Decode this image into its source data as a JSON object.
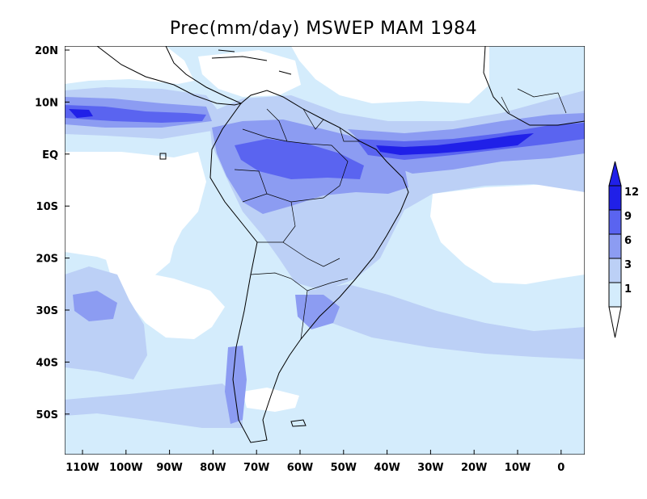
{
  "title": "Prec(mm/day) MSWEP MAM 1984",
  "map": {
    "lat_labels": [
      "20N",
      "10N",
      "EQ",
      "10S",
      "20S",
      "30S",
      "40S",
      "50S"
    ],
    "lon_labels": [
      "110W",
      "100W",
      "90W",
      "80W",
      "70W",
      "60W",
      "50W",
      "40W",
      "30W",
      "20W",
      "10W",
      "0"
    ]
  },
  "legend": {
    "labels": [
      "12",
      "9",
      "6",
      "3",
      "1"
    ],
    "colors": [
      "#2020e8",
      "#5a64f0",
      "#8c9cf2",
      "#bcd0f6",
      "#d4ecfc",
      "#ffffff"
    ]
  },
  "colors": {
    "land_outline": "#000000",
    "ocean_dry": "#ffffff",
    "light_rain": "#d4ecfc",
    "moderate_rain": "#bcd0f6",
    "heavy_rain": "#8c9cf2",
    "very_heavy_rain": "#5a64f0",
    "extreme_rain": "#2020e8"
  }
}
